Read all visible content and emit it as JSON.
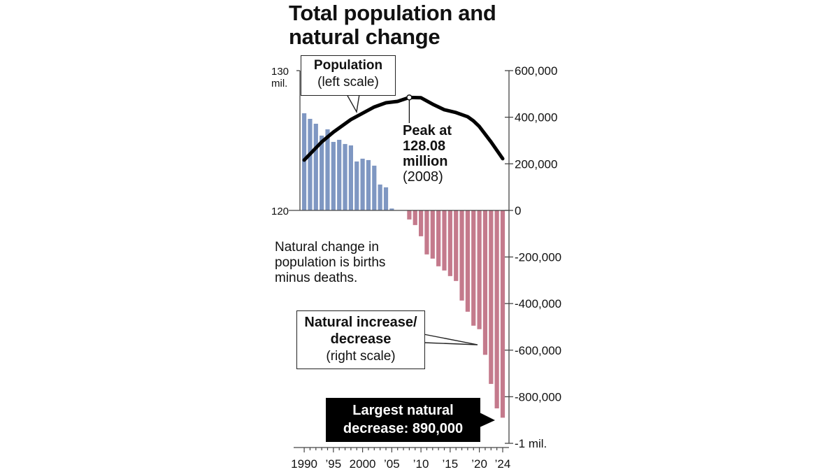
{
  "chart_data": {
    "type": "bar",
    "title": [
      "Total population and",
      "natural change"
    ],
    "x": [
      1990,
      1991,
      1992,
      1993,
      1994,
      1995,
      1996,
      1997,
      1998,
      1999,
      2000,
      2001,
      2002,
      2003,
      2004,
      2005,
      2006,
      2007,
      2008,
      2009,
      2010,
      2011,
      2012,
      2013,
      2014,
      2015,
      2016,
      2017,
      2018,
      2019,
      2020,
      2021,
      2022,
      2023,
      2024
    ],
    "x_tick_labels": [
      {
        "year": 1990,
        "label": "1990"
      },
      {
        "year": 1995,
        "label": "’95"
      },
      {
        "year": 2000,
        "label": "2000"
      },
      {
        "year": 2005,
        "label": "’05"
      },
      {
        "year": 2010,
        "label": "’10"
      },
      {
        "year": 2015,
        "label": "’15"
      },
      {
        "year": 2020,
        "label": "’20"
      },
      {
        "year": 2024,
        "label": "’24"
      }
    ],
    "series": [
      {
        "name": "Natural increase/decrease",
        "axis": "right",
        "type": "bar",
        "positive_color": "#7f97c2",
        "negative_color": "#c47a8c",
        "values": [
          417000,
          393000,
          372000,
          321000,
          348000,
          294000,
          303000,
          285000,
          279000,
          210000,
          222000,
          216000,
          192000,
          111000,
          99000,
          8000,
          0,
          0,
          -39000,
          -63000,
          -111000,
          -189000,
          -207000,
          -240000,
          -258000,
          -282000,
          -303000,
          -387000,
          -435000,
          -495000,
          -510000,
          -620000,
          -745000,
          -850000,
          -890000
        ]
      },
      {
        "name": "Population",
        "axis": "left",
        "type": "line",
        "color": "#000000",
        "x": [
          1990,
          1993,
          1995,
          1998,
          2000,
          2002,
          2004,
          2006,
          2008,
          2010,
          2012,
          2014,
          2016,
          2018,
          2019,
          2020,
          2022,
          2024
        ],
        "values": [
          123.6,
          124.9,
          125.6,
          126.5,
          126.95,
          127.4,
          127.7,
          127.8,
          128.08,
          128.06,
          127.6,
          127.2,
          127.0,
          126.7,
          126.4,
          126.0,
          124.9,
          123.7
        ]
      }
    ],
    "left_axis": {
      "ylim": [
        120,
        130
      ],
      "ticks": [
        {
          "value": 130,
          "label": "130"
        },
        {
          "value": 120,
          "label": "120"
        }
      ],
      "unit_label": "mil."
    },
    "right_axis": {
      "ylim": [
        -1000000,
        600000
      ],
      "ticks": [
        {
          "value": 600000,
          "label": "600,000"
        },
        {
          "value": 400000,
          "label": "400,000"
        },
        {
          "value": 200000,
          "label": "200,000"
        },
        {
          "value": 0,
          "label": "0"
        },
        {
          "value": -200000,
          "label": "-200,000"
        },
        {
          "value": -400000,
          "label": "-400,000"
        },
        {
          "value": -600000,
          "label": "-600,000"
        },
        {
          "value": -800000,
          "label": "-800,000"
        },
        {
          "value": -1000000,
          "label": "-1 mil."
        }
      ]
    },
    "grid": false,
    "annotations": {
      "population_label": {
        "bold": "Population",
        "normal": "(left scale)"
      },
      "peak": {
        "year": 2008,
        "value": 128.08,
        "lines": [
          "Peak at",
          "128.08",
          "million"
        ],
        "sub": "(2008)"
      },
      "note": [
        "Natural change in",
        "population is births",
        "minus deaths."
      ],
      "natural_label": {
        "bold": [
          "Natural increase/",
          "decrease"
        ],
        "normal": "(right scale)"
      },
      "largest": [
        "Largest natural",
        "decrease: 890,000"
      ]
    }
  }
}
